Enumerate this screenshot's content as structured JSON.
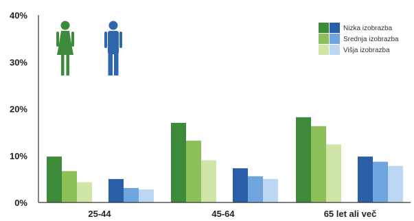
{
  "chart_data": {
    "type": "bar",
    "categories": [
      "25-44",
      "45-64",
      "65 let ali več"
    ],
    "ylim": [
      0,
      40
    ],
    "yticks": [
      0,
      10,
      20,
      30,
      40
    ],
    "ytick_suffix": "%",
    "grid": false,
    "legend_position": "top-right",
    "legend": [
      "Nizka izobrazba",
      "Srednja izobrazba",
      "Višja izobrazba"
    ],
    "groups": [
      {
        "name": "women",
        "icon": "woman-icon",
        "icon_color": "#3d8a3a",
        "colors": [
          "#3d8a3a",
          "#8dc05a",
          "#cfe6a8"
        ],
        "series": [
          {
            "name": "Nizka izobrazba",
            "values": [
              9.8,
              17.0,
              18.2
            ]
          },
          {
            "name": "Srednja izobrazba",
            "values": [
              6.7,
              13.2,
              16.3
            ]
          },
          {
            "name": "Višja izobrazba",
            "values": [
              4.3,
              9.0,
              12.4
            ]
          }
        ]
      },
      {
        "name": "men",
        "icon": "man-icon",
        "icon_color": "#2e66b0",
        "colors": [
          "#2a5fa8",
          "#6fa4df",
          "#bcd7f3"
        ],
        "series": [
          {
            "name": "Nizka izobrazba",
            "values": [
              5.0,
              7.3,
              9.8
            ]
          },
          {
            "name": "Srednja izobrazba",
            "values": [
              3.1,
              5.6,
              8.7
            ]
          },
          {
            "name": "Višja izobrazba",
            "values": [
              2.8,
              5.0,
              7.8
            ]
          }
        ]
      }
    ]
  }
}
